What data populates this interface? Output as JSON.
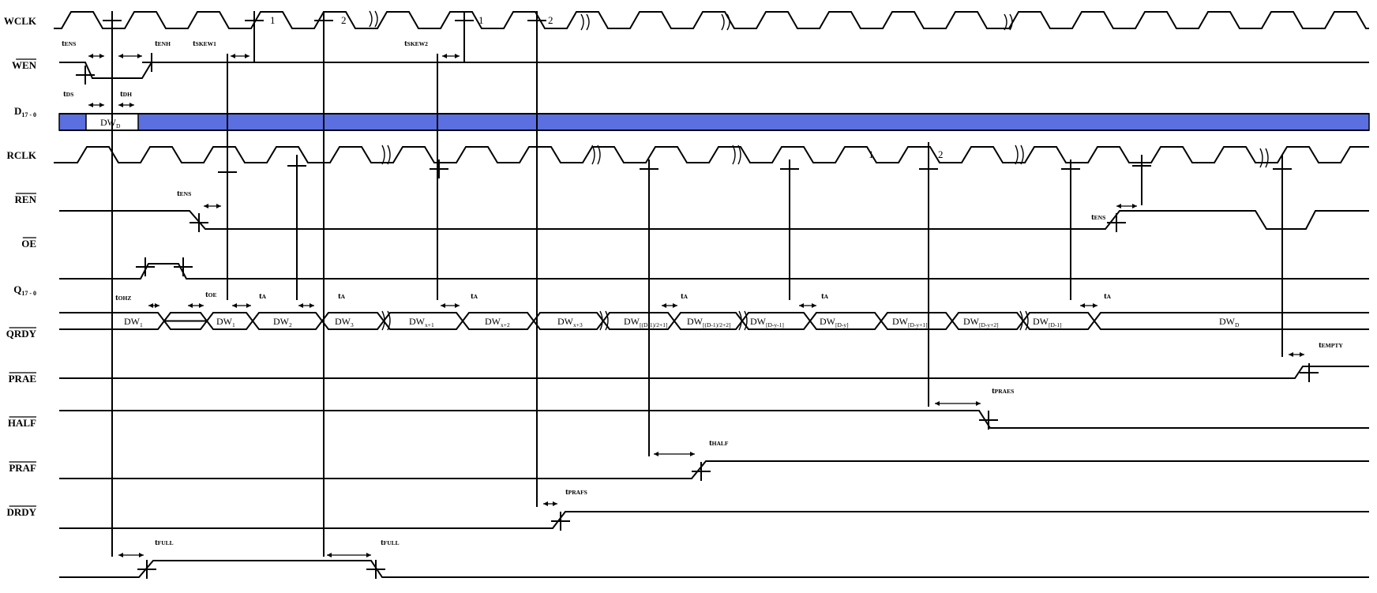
{
  "signals": [
    {
      "id": "wclk",
      "label": "WCLK",
      "sub": "",
      "bar": false
    },
    {
      "id": "wen",
      "label": "WEN",
      "sub": "",
      "bar": true
    },
    {
      "id": "d",
      "label": "D",
      "sub": "17 - 0",
      "bar": false
    },
    {
      "id": "rclk",
      "label": "RCLK",
      "sub": "",
      "bar": false
    },
    {
      "id": "ren",
      "label": "REN",
      "sub": "",
      "bar": true
    },
    {
      "id": "oe",
      "label": "OE",
      "sub": "",
      "bar": true
    },
    {
      "id": "q",
      "label": "Q",
      "sub": "17 - 0",
      "bar": false
    },
    {
      "id": "qrdy",
      "label": "QRDY",
      "sub": "",
      "bar": true
    },
    {
      "id": "prae",
      "label": "PRAE",
      "sub": "",
      "bar": true
    },
    {
      "id": "half",
      "label": "HALF",
      "sub": "",
      "bar": true
    },
    {
      "id": "praf",
      "label": "PRAF",
      "sub": "",
      "bar": true
    },
    {
      "id": "drdy",
      "label": "DRDY",
      "sub": "",
      "bar": true
    }
  ],
  "d_word": {
    "main": "DW",
    "sub": "D"
  },
  "q_words": [
    {
      "main": "DW",
      "sub": "1"
    },
    {
      "main": "DW",
      "sub": "1"
    },
    {
      "main": "DW",
      "sub": "2"
    },
    {
      "main": "DW",
      "sub": "3"
    },
    {
      "main": "DW",
      "sub": "x+1"
    },
    {
      "main": "DW",
      "sub": "x+2"
    },
    {
      "main": "DW",
      "sub": "x+3"
    },
    {
      "main": "DW",
      "sub": "[(D-1)/2+1]"
    },
    {
      "main": "DW",
      "sub": "[(D-1)/2+2]"
    },
    {
      "main": "DW",
      "sub": "[D-y-1]"
    },
    {
      "main": "DW",
      "sub": "[D-y]"
    },
    {
      "main": "DW",
      "sub": "[D-y+1]"
    },
    {
      "main": "DW",
      "sub": "[D-y+2]"
    },
    {
      "main": "DW",
      "sub": "[D-1]"
    },
    {
      "main": "DW",
      "sub": "D"
    }
  ],
  "clock_numbers": {
    "wclk": [
      "1",
      "2",
      "1",
      "2"
    ],
    "rclk": [
      "1",
      "2"
    ]
  },
  "timing_labels": [
    {
      "t": "t",
      "s": "ENS"
    },
    {
      "t": "t",
      "s": "ENH"
    },
    {
      "t": "t",
      "s": "SKEW1"
    },
    {
      "t": "t",
      "s": "SKEW2"
    },
    {
      "t": "t",
      "s": "DS"
    },
    {
      "t": "t",
      "s": "DH"
    },
    {
      "t": "t",
      "s": "ENS"
    },
    {
      "t": "t",
      "s": "ENS"
    },
    {
      "t": "t",
      "s": "OHZ"
    },
    {
      "t": "t",
      "s": "OE"
    },
    {
      "t": "t",
      "s": "A"
    },
    {
      "t": "t",
      "s": "A"
    },
    {
      "t": "t",
      "s": "A"
    },
    {
      "t": "t",
      "s": "A"
    },
    {
      "t": "t",
      "s": "A"
    },
    {
      "t": "t",
      "s": "A"
    },
    {
      "t": "t",
      "s": "EMPTY"
    },
    {
      "t": "t",
      "s": "PRAES"
    },
    {
      "t": "t",
      "s": "HALF"
    },
    {
      "t": "t",
      "s": "PRAFS"
    },
    {
      "t": "t",
      "s": "FULL"
    },
    {
      "t": "t",
      "s": "FULL"
    }
  ],
  "colors": {
    "line": "#000000",
    "data_bus": "#5b6fe0",
    "background": "#ffffff"
  }
}
